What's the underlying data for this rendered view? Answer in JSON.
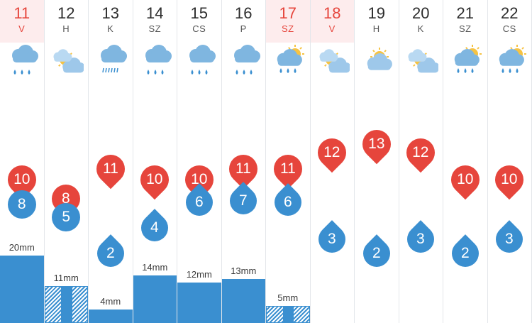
{
  "colors": {
    "high": "#e6453c",
    "low": "#3a8fd0",
    "weekend_bg": "#fdeced"
  },
  "days": [
    {
      "day": "11",
      "weekday": "V",
      "weekend": true,
      "icon": "rain-icon",
      "high": "10",
      "low": "8",
      "precip": "20mm",
      "mm": 20
    },
    {
      "day": "12",
      "weekday": "H",
      "weekend": false,
      "icon": "sun-cloud-icon",
      "high": "8",
      "low": "5",
      "precip": "11mm",
      "mm": 11
    },
    {
      "day": "13",
      "weekday": "K",
      "weekend": false,
      "icon": "drizzle-icon",
      "high": "11",
      "low": "2",
      "precip": "4mm",
      "mm": 4
    },
    {
      "day": "14",
      "weekday": "SZ",
      "weekend": false,
      "icon": "rain-icon",
      "high": "10",
      "low": "4",
      "precip": "14mm",
      "mm": 14
    },
    {
      "day": "15",
      "weekday": "CS",
      "weekend": false,
      "icon": "rain-icon",
      "high": "10",
      "low": "6",
      "precip": "12mm",
      "mm": 12
    },
    {
      "day": "16",
      "weekday": "P",
      "weekend": false,
      "icon": "rain-icon",
      "high": "11",
      "low": "7",
      "precip": "13mm",
      "mm": 13
    },
    {
      "day": "17",
      "weekday": "SZ",
      "weekend": true,
      "icon": "sun-rain-icon",
      "high": "11",
      "low": "6",
      "precip": "5mm",
      "mm": 5
    },
    {
      "day": "18",
      "weekday": "V",
      "weekend": true,
      "icon": "sun-cloud-icon",
      "high": "12",
      "low": "3",
      "precip": "",
      "mm": 0
    },
    {
      "day": "19",
      "weekday": "H",
      "weekend": false,
      "icon": "partly-cloudy-icon",
      "high": "13",
      "low": "2",
      "precip": "",
      "mm": 0
    },
    {
      "day": "20",
      "weekday": "K",
      "weekend": false,
      "icon": "sun-cloud-icon",
      "high": "12",
      "low": "3",
      "precip": "",
      "mm": 0
    },
    {
      "day": "21",
      "weekday": "SZ",
      "weekend": false,
      "icon": "sun-rain-icon",
      "high": "10",
      "low": "2",
      "precip": "",
      "mm": 0
    },
    {
      "day": "22",
      "weekday": "CS",
      "weekend": false,
      "icon": "sun-rain-icon",
      "high": "10",
      "low": "3",
      "precip": "",
      "mm": 0
    }
  ]
}
